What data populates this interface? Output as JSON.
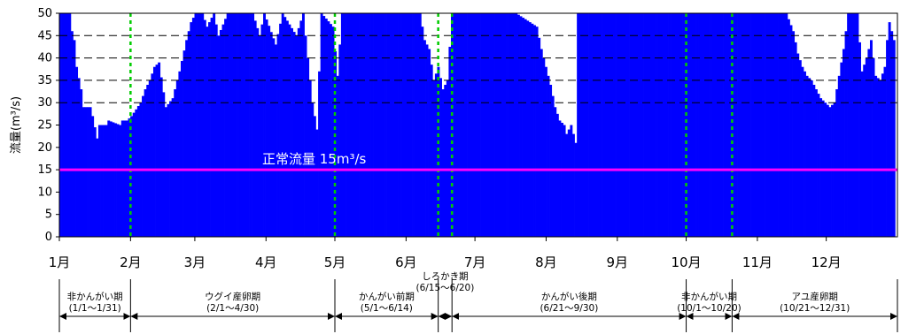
{
  "chart_data": {
    "type": "bar",
    "ylabel": "流量(m³/s)",
    "ylim": [
      0,
      50
    ],
    "yticks": [
      0,
      5,
      10,
      15,
      20,
      25,
      30,
      35,
      40,
      45,
      50
    ],
    "ygrid_dashed": [
      30,
      35,
      40,
      45
    ],
    "x_months": [
      "1月",
      "2月",
      "3月",
      "4月",
      "5月",
      "6月",
      "7月",
      "8月",
      "9月",
      "10月",
      "11月",
      "12月"
    ],
    "days_in_month": [
      31,
      28,
      31,
      30,
      31,
      30,
      31,
      31,
      30,
      31,
      30,
      31
    ],
    "bar_color": "#0000ff",
    "segments": [
      [
        1,
        50
      ],
      [
        5,
        50
      ],
      [
        6,
        46
      ],
      [
        7,
        44
      ],
      [
        8,
        38
      ],
      [
        10,
        33
      ],
      [
        11,
        29
      ],
      [
        14,
        29
      ],
      [
        15,
        27
      ],
      [
        17,
        22
      ],
      [
        18,
        25
      ],
      [
        21,
        25
      ],
      [
        22,
        26
      ],
      [
        27,
        25
      ],
      [
        28,
        26
      ],
      [
        30,
        26
      ],
      [
        32,
        27
      ],
      [
        36,
        30
      ],
      [
        38,
        33
      ],
      [
        40,
        35
      ],
      [
        42,
        38
      ],
      [
        44,
        39
      ],
      [
        47,
        29
      ],
      [
        50,
        31
      ],
      [
        53,
        37
      ],
      [
        56,
        44
      ],
      [
        58,
        48
      ],
      [
        60,
        50
      ],
      [
        63,
        50
      ],
      [
        65,
        47
      ],
      [
        68,
        50
      ],
      [
        70,
        45
      ],
      [
        74,
        50
      ],
      [
        85,
        50
      ],
      [
        88,
        45
      ],
      [
        90,
        50
      ],
      [
        95,
        43
      ],
      [
        98,
        50
      ],
      [
        104,
        45
      ],
      [
        107,
        50
      ],
      [
        111,
        30
      ],
      [
        113,
        24
      ],
      [
        115,
        50
      ],
      [
        120,
        47
      ],
      [
        122,
        36
      ],
      [
        124,
        50
      ],
      [
        128,
        50
      ],
      [
        135,
        50
      ],
      [
        145,
        50
      ],
      [
        158,
        50
      ],
      [
        160,
        44
      ],
      [
        162,
        42
      ],
      [
        164,
        35
      ],
      [
        166,
        38
      ],
      [
        168,
        33
      ],
      [
        170,
        35
      ],
      [
        172,
        50
      ],
      [
        180,
        50
      ],
      [
        200,
        50
      ],
      [
        209,
        47
      ],
      [
        211,
        42
      ],
      [
        213,
        38
      ],
      [
        215,
        34
      ],
      [
        217,
        29
      ],
      [
        219,
        26
      ],
      [
        221,
        25
      ],
      [
        222,
        23
      ],
      [
        224,
        25
      ],
      [
        226,
        21
      ],
      [
        227,
        50
      ],
      [
        240,
        50
      ],
      [
        260,
        50
      ],
      [
        275,
        50
      ],
      [
        290,
        50
      ],
      [
        300,
        50
      ],
      [
        310,
        50
      ],
      [
        318,
        50
      ],
      [
        321,
        46
      ],
      [
        323,
        41
      ],
      [
        325,
        38
      ],
      [
        327,
        36
      ],
      [
        329,
        35
      ],
      [
        331,
        33
      ],
      [
        333,
        31
      ],
      [
        335,
        30
      ],
      [
        337,
        29
      ],
      [
        339,
        30
      ],
      [
        341,
        36
      ],
      [
        343,
        42
      ],
      [
        345,
        50
      ],
      [
        349,
        50
      ],
      [
        351,
        37
      ],
      [
        353,
        40
      ],
      [
        355,
        44
      ],
      [
        357,
        36
      ],
      [
        359,
        35
      ],
      [
        361,
        38
      ],
      [
        362,
        44
      ],
      [
        363,
        48
      ],
      [
        364,
        46
      ],
      [
        365,
        44
      ]
    ],
    "reference_line": {
      "value": 15,
      "label": "正常流量 15m³/s",
      "color": "#ff00ff"
    },
    "vertical_markers": {
      "color": "#00cc00",
      "days": [
        32,
        121,
        166,
        172,
        274,
        294
      ]
    },
    "periods": [
      {
        "name": "非かんがい期",
        "range": "(1/1～1/31)",
        "start_day": 1,
        "end_day": 32
      },
      {
        "name": "ウグイ産卵期",
        "range": "(2/1～4/30)",
        "start_day": 32,
        "end_day": 121
      },
      {
        "name": "かんがい前期",
        "range": "(5/1～6/14)",
        "start_day": 121,
        "end_day": 166
      },
      {
        "name": "しろかき期",
        "range": "(6/15～6/20)",
        "start_day": 166,
        "end_day": 172
      },
      {
        "name": "かんがい後期",
        "range": "(6/21～9/30)",
        "start_day": 172,
        "end_day": 274
      },
      {
        "name": "非かんがい期",
        "range": "(10/1～10/20)",
        "start_day": 274,
        "end_day": 294
      },
      {
        "name": "アユ産卵期",
        "range": "(10/21～12/31)",
        "start_day": 294,
        "end_day": 366
      }
    ]
  }
}
